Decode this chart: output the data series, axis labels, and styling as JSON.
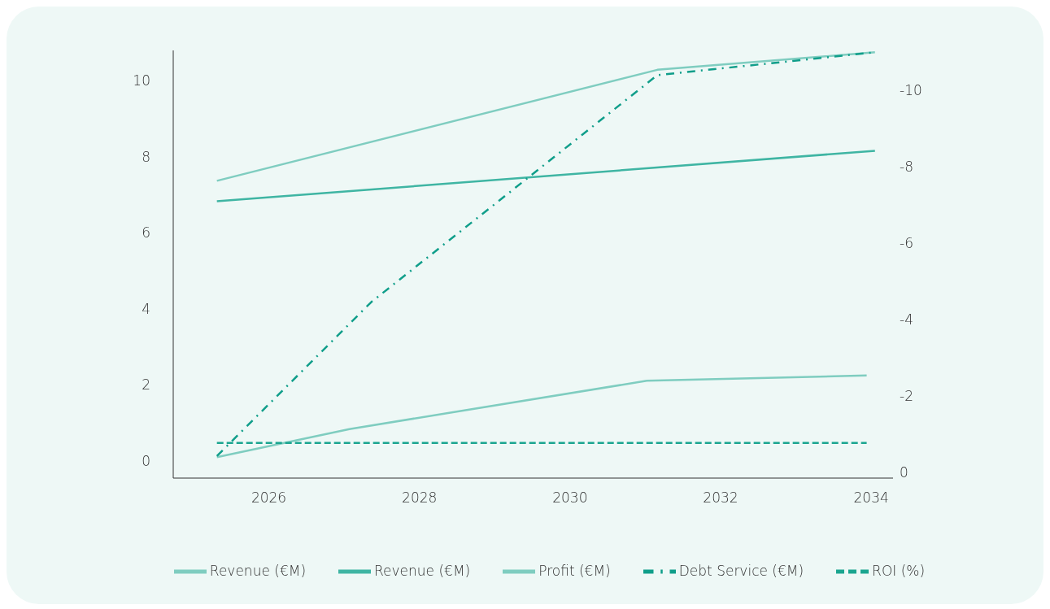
{
  "chart_data": {
    "type": "line",
    "xlim": [
      2024.73,
      2034.29
    ],
    "xticks": [
      2026,
      2028,
      2030,
      2032,
      2034
    ],
    "ylim": [
      -0.45,
      10.8
    ],
    "yticks": [
      0,
      2,
      4,
      6,
      8,
      10
    ],
    "y2lim": [
      0.15,
      -11.05
    ],
    "y2ticks": [
      0,
      -2,
      -4,
      -6,
      -8,
      -10
    ],
    "legend": "bottom",
    "marker": "none",
    "series": [
      {
        "name": "Revenue (€M)",
        "color": "#7fcdc0",
        "x": [
          2025.31,
          2031.16,
          2034.05
        ],
        "values": [
          7.37,
          10.29,
          10.75
        ],
        "line_style": "solid"
      },
      {
        "name": "Revenue (€M)",
        "color": "#3fb5a3",
        "x": [
          2025.31,
          2034.05
        ],
        "values": [
          6.83,
          8.16
        ],
        "line_style": "solid"
      },
      {
        "name": "Profit (€M)",
        "color": "#7fcdc0",
        "x": [
          2025.31,
          2027.07,
          2031.02,
          2033.94
        ],
        "values": [
          0.1,
          0.84,
          2.11,
          2.25
        ],
        "line_style": "solid"
      },
      {
        "name": "Debt Service (€M)",
        "color": "#109e8a",
        "x": [
          2025.31,
          2027.36,
          2031.16,
          2034.05
        ],
        "values": [
          0.13,
          4.18,
          10.15,
          10.75
        ],
        "line_style": "dashdot"
      },
      {
        "name": "ROI (%)",
        "color": "#1ba590",
        "x": [
          2025.31,
          2033.94
        ],
        "values": [
          -0.77,
          -0.77
        ],
        "line_style": "dashed",
        "axis": "y2"
      }
    ]
  }
}
